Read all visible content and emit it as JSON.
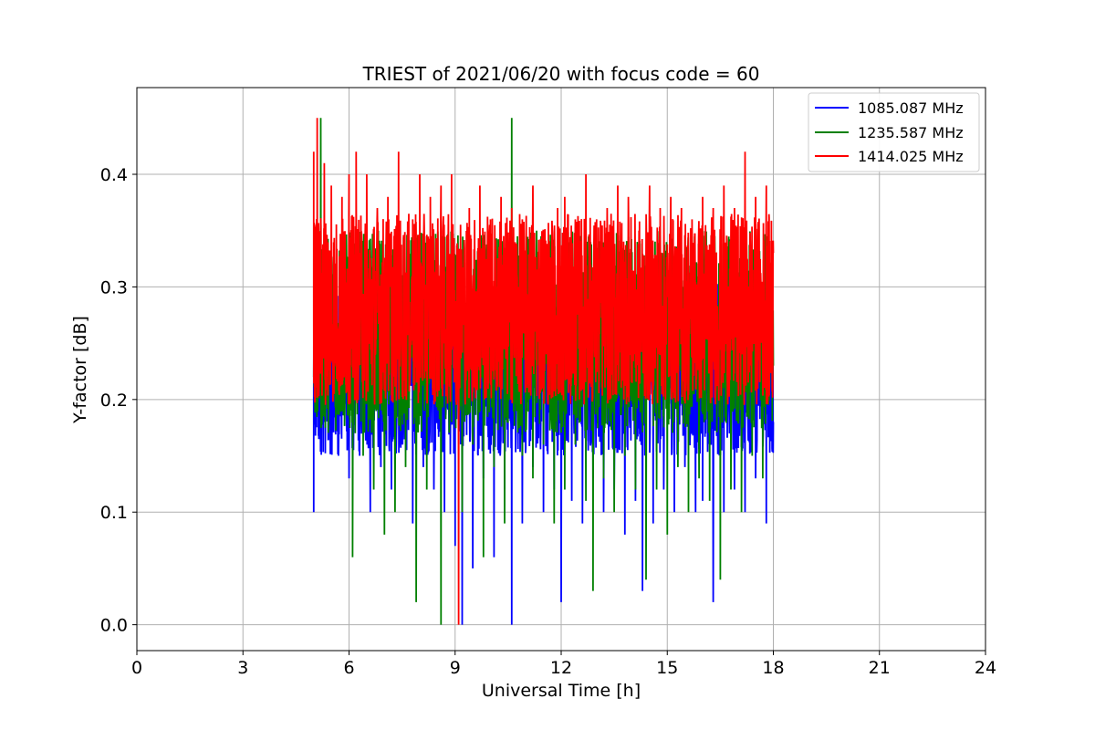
{
  "chart_data": {
    "type": "line",
    "title": "TRIEST of 2021/06/20 with focus code = 60",
    "xlabel": "Universal Time [h]",
    "ylabel": "Y-factor [dB]",
    "xlim": [
      0,
      24
    ],
    "ylim": [
      -0.023,
      0.477
    ],
    "xticks": [
      0,
      3,
      6,
      9,
      12,
      15,
      18,
      21,
      24
    ],
    "yticks": [
      0.0,
      0.1,
      0.2,
      0.3,
      0.4
    ],
    "ytick_labels": [
      "0.0",
      "0.1",
      "0.2",
      "0.3",
      "0.4"
    ],
    "grid": true,
    "legend_position": "top-right",
    "x_range_of_data": [
      5.0,
      18.0
    ],
    "series": [
      {
        "name": "1085.087 MHz",
        "color": "#0000ff",
        "x": [
          5.0,
          5.1,
          5.3,
          5.5,
          5.7,
          6.0,
          6.3,
          6.6,
          6.9,
          7.2,
          7.5,
          7.8,
          8.1,
          8.4,
          8.7,
          9.0,
          9.2,
          9.5,
          9.8,
          10.1,
          10.4,
          10.6,
          10.9,
          11.2,
          11.5,
          11.8,
          12.0,
          12.3,
          12.6,
          12.9,
          13.2,
          13.5,
          13.8,
          14.1,
          14.3,
          14.6,
          14.9,
          15.2,
          15.5,
          15.8,
          16.0,
          16.3,
          16.6,
          16.9,
          17.2,
          17.5,
          17.8,
          18.0
        ],
        "values": [
          0.1,
          0.2,
          0.18,
          0.17,
          0.15,
          0.13,
          0.15,
          0.1,
          0.14,
          0.12,
          0.16,
          0.09,
          0.14,
          0.12,
          0.1,
          0.07,
          0.0,
          0.05,
          0.13,
          0.06,
          0.12,
          0.0,
          0.09,
          0.14,
          0.1,
          0.12,
          0.02,
          0.11,
          0.09,
          0.13,
          0.1,
          0.12,
          0.08,
          0.11,
          0.03,
          0.09,
          0.12,
          0.1,
          0.14,
          0.1,
          0.11,
          0.02,
          0.1,
          0.12,
          0.1,
          0.13,
          0.09,
          0.18
        ]
      },
      {
        "name": "1235.587 MHz",
        "color": "#008000",
        "x": [
          5.0,
          5.2,
          5.4,
          5.7,
          6.0,
          6.1,
          6.4,
          6.7,
          7.0,
          7.3,
          7.6,
          7.9,
          8.2,
          8.6,
          8.9,
          9.2,
          9.5,
          9.8,
          10.1,
          10.4,
          10.6,
          10.9,
          11.2,
          11.5,
          11.8,
          12.1,
          12.4,
          12.7,
          12.9,
          13.2,
          13.5,
          13.8,
          14.1,
          14.4,
          14.7,
          15.0,
          15.3,
          15.6,
          15.9,
          16.2,
          16.5,
          16.8,
          17.1,
          17.4,
          17.7,
          18.0
        ],
        "values": [
          0.22,
          0.45,
          0.2,
          0.21,
          0.19,
          0.06,
          0.15,
          0.12,
          0.08,
          0.1,
          0.14,
          0.02,
          0.12,
          0.0,
          0.18,
          0.1,
          0.16,
          0.06,
          0.14,
          0.09,
          0.45,
          0.15,
          0.13,
          0.16,
          0.09,
          0.12,
          0.16,
          0.11,
          0.03,
          0.13,
          0.1,
          0.15,
          0.12,
          0.04,
          0.12,
          0.08,
          0.14,
          0.1,
          0.13,
          0.11,
          0.04,
          0.12,
          0.1,
          0.15,
          0.13,
          0.23
        ]
      },
      {
        "name": "1414.025 MHz",
        "color": "#ff0000",
        "x": [
          5.0,
          5.1,
          5.3,
          5.5,
          5.8,
          6.0,
          6.2,
          6.5,
          6.8,
          7.1,
          7.4,
          7.8,
          8.0,
          8.3,
          8.6,
          8.9,
          9.1,
          9.4,
          9.7,
          10.0,
          10.3,
          10.6,
          10.9,
          11.2,
          11.5,
          11.9,
          12.1,
          12.4,
          12.7,
          13.0,
          13.3,
          13.6,
          13.9,
          14.2,
          14.5,
          14.8,
          15.1,
          15.4,
          15.7,
          16.0,
          16.3,
          16.6,
          16.9,
          17.2,
          17.5,
          17.8,
          18.0
        ],
        "values": [
          0.42,
          0.45,
          0.41,
          0.39,
          0.38,
          0.4,
          0.42,
          0.4,
          0.37,
          0.38,
          0.42,
          0.36,
          0.4,
          0.38,
          0.39,
          0.4,
          0.0,
          0.37,
          0.39,
          0.36,
          0.38,
          0.37,
          0.36,
          0.39,
          0.35,
          0.37,
          0.38,
          0.36,
          0.4,
          0.36,
          0.37,
          0.39,
          0.38,
          0.35,
          0.39,
          0.37,
          0.38,
          0.37,
          0.36,
          0.38,
          0.37,
          0.39,
          0.37,
          0.42,
          0.38,
          0.39,
          0.33
        ]
      }
    ]
  }
}
